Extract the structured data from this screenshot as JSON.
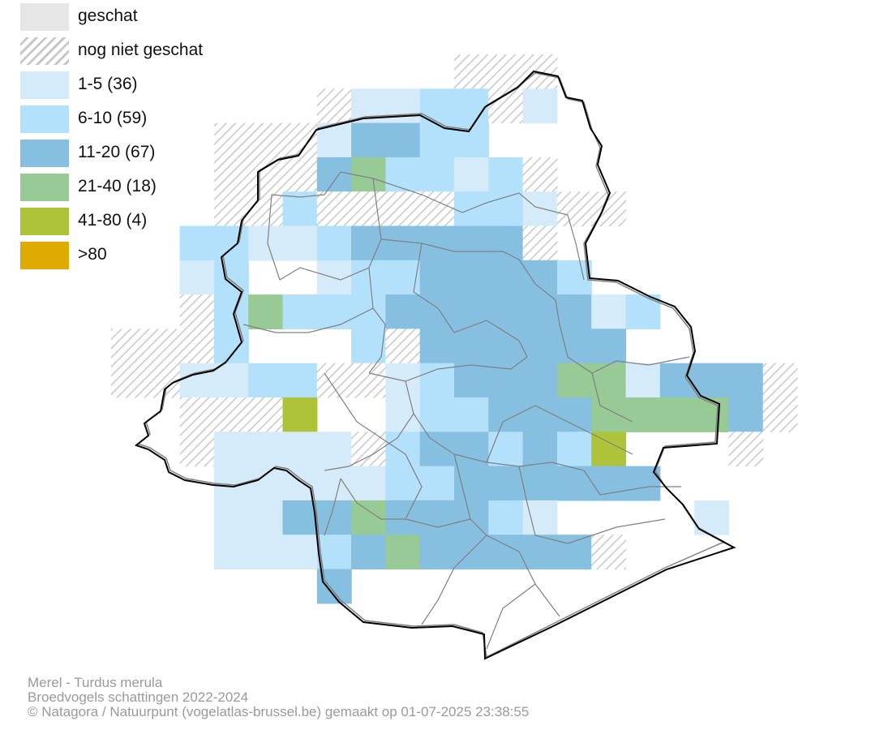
{
  "legend": {
    "items": [
      {
        "label": "geschat",
        "color": "#e6e6e6",
        "pattern": "none"
      },
      {
        "label": "nog niet geschat",
        "color": "#ffffff",
        "pattern": "hatch"
      },
      {
        "label": "1-5 (36)",
        "color": "#d6ebfa",
        "pattern": "none"
      },
      {
        "label": "6-10 (59)",
        "color": "#b3e0fa",
        "pattern": "none"
      },
      {
        "label": "11-20 (67)",
        "color": "#86bfe0",
        "pattern": "none"
      },
      {
        "label": "21-40 (18)",
        "color": "#97ca94",
        "pattern": "none"
      },
      {
        "label": "41-80 (4)",
        "color": "#aec33a",
        "pattern": "none"
      },
      {
        "label": ">80",
        "color": "#e0ab00",
        "pattern": "none"
      }
    ]
  },
  "map": {
    "grid_legend_index": [
      "..........111.....",
      "......1223312.....",
      "...11124433.......",
      "...1114533231.....",
      "...113111133211...",
      "..33223444441.....",
      "..23..23344443....",
      "..13533344444423..",
      "1113...31444444...",
      "11223311234445524441",
      "..1116..233444555541",
      "..1222213443436...1",
      "...2222233444444...",
      "...2244544432....2..",
      "...222345444441...",
      "......4..........."
    ]
  },
  "caption": {
    "line1": "Merel - Turdus merula",
    "line2": "Broedvogels schattingen 2022-2024",
    "line3": "© Natagora / Natuurpunt (vogelatlas-brussel.be) gemaakt op 01-07-2025 23:38:55"
  }
}
